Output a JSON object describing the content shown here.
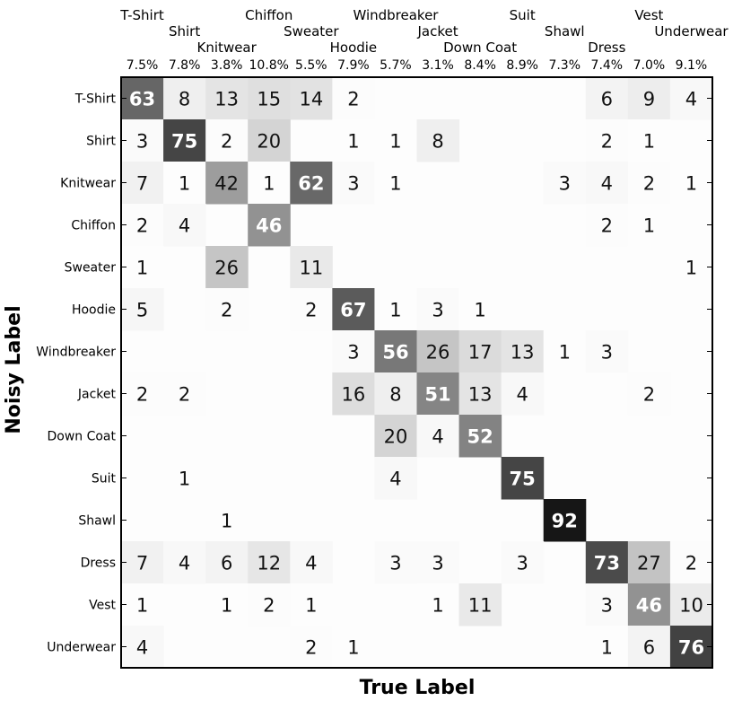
{
  "chart_data": {
    "type": "heatmap",
    "xlabel": "True Label",
    "ylabel": "Noisy Label",
    "x_categories": [
      "T-Shirt",
      "Shirt",
      "Knitwear",
      "Chiffon",
      "Sweater",
      "Hoodie",
      "Windbreaker",
      "Jacket",
      "Down Coat",
      "Suit",
      "Shawl",
      "Dress",
      "Vest",
      "Underwear"
    ],
    "y_categories": [
      "T-Shirt",
      "Shirt",
      "Knitwear",
      "Chiffon",
      "Sweater",
      "Hoodie",
      "Windbreaker",
      "Jacket",
      "Down Coat",
      "Suit",
      "Shawl",
      "Dress",
      "Vest",
      "Underwear"
    ],
    "column_percentages": [
      "7.5%",
      "7.8%",
      "3.8%",
      "10.8%",
      "5.5%",
      "7.9%",
      "5.7%",
      "3.1%",
      "8.4%",
      "8.9%",
      "7.3%",
      "7.4%",
      "7.0%",
      "9.1%"
    ],
    "values": [
      [
        63,
        8,
        13,
        15,
        14,
        2,
        null,
        null,
        null,
        null,
        null,
        6,
        9,
        4
      ],
      [
        3,
        75,
        2,
        20,
        null,
        1,
        1,
        8,
        null,
        null,
        null,
        2,
        1,
        null
      ],
      [
        7,
        1,
        42,
        1,
        62,
        3,
        1,
        null,
        null,
        null,
        3,
        4,
        2,
        1
      ],
      [
        2,
        4,
        null,
        46,
        null,
        null,
        null,
        null,
        null,
        null,
        null,
        2,
        1,
        null
      ],
      [
        1,
        null,
        26,
        null,
        11,
        null,
        null,
        null,
        null,
        null,
        null,
        null,
        null,
        1
      ],
      [
        5,
        null,
        2,
        null,
        2,
        67,
        1,
        3,
        1,
        null,
        null,
        null,
        null,
        null
      ],
      [
        null,
        null,
        null,
        null,
        null,
        3,
        56,
        26,
        17,
        13,
        1,
        3,
        null,
        null
      ],
      [
        2,
        2,
        null,
        null,
        null,
        16,
        8,
        51,
        13,
        4,
        null,
        null,
        2,
        null
      ],
      [
        null,
        null,
        null,
        null,
        null,
        null,
        20,
        4,
        52,
        null,
        null,
        null,
        null,
        null
      ],
      [
        null,
        1,
        null,
        null,
        null,
        null,
        4,
        null,
        null,
        75,
        null,
        null,
        null,
        null
      ],
      [
        null,
        null,
        1,
        null,
        null,
        null,
        null,
        null,
        null,
        null,
        92,
        null,
        null,
        null
      ],
      [
        7,
        4,
        6,
        12,
        4,
        null,
        3,
        3,
        null,
        3,
        null,
        73,
        27,
        2
      ],
      [
        1,
        null,
        1,
        2,
        1,
        null,
        null,
        1,
        11,
        null,
        null,
        3,
        46,
        10
      ],
      [
        4,
        null,
        null,
        null,
        2,
        1,
        null,
        null,
        null,
        null,
        null,
        1,
        6,
        76
      ]
    ],
    "value_range": [
      0,
      100
    ],
    "colormap": "greys",
    "legend": "none"
  }
}
